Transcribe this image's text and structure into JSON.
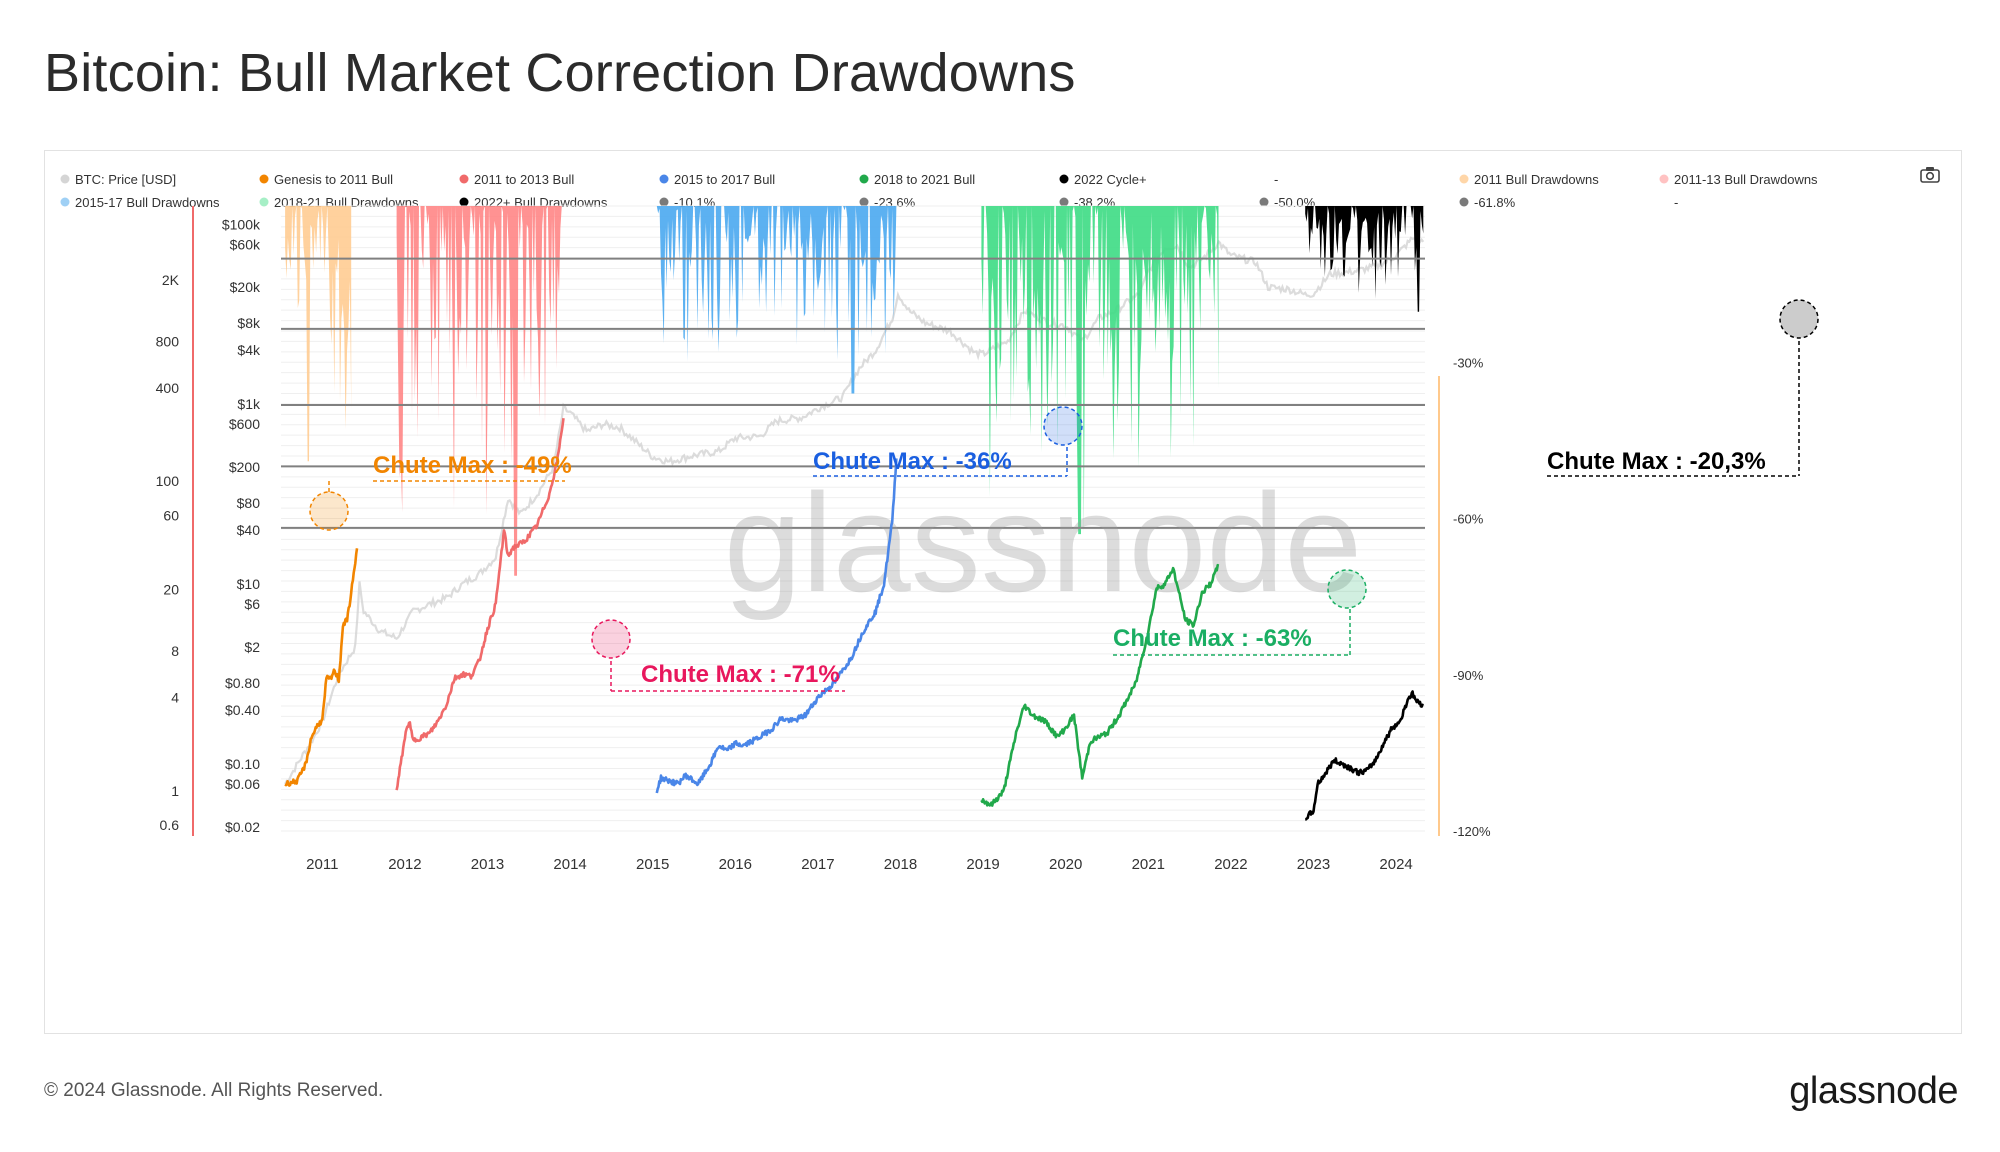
{
  "title": "Bitcoin: Bull Market Correction Drawdowns",
  "footer": {
    "copyright": "© 2024 Glassnode. All Rights Reserved.",
    "logo": "glassnode"
  },
  "watermark": "glassnode",
  "icons": {
    "camera": "camera-icon"
  },
  "colors": {
    "price": "#d0d0d0",
    "genesis": "#f28500",
    "bull_11_13": "#f06a6a",
    "bull_15_17": "#4a86e8",
    "bull_18_21": "#21a94b",
    "cycle_22": "#000000",
    "dd_2011": "#ffc98c",
    "dd_11_13": "#ff7f7f",
    "dd_15_17": "#4aa8f0",
    "dd_18_21": "#3ddc84",
    "dd_2022": "#000000",
    "grid_line": "#808080",
    "left_axis_line": "#f06a6a",
    "right_axis_line": "#ffc98c"
  },
  "chart_data": {
    "type": "line",
    "title": "Bitcoin: Bull Market Correction Drawdowns",
    "legend": [
      {
        "label": "BTC: Price [USD]",
        "color": "#d5d5d5"
      },
      {
        "label": "Genesis to 2011 Bull",
        "color": "#f28500"
      },
      {
        "label": "2011 to 2013 Bull",
        "color": "#f06a6a"
      },
      {
        "label": "2015 to 2017 Bull",
        "color": "#4a86e8"
      },
      {
        "label": "2018 to 2021 Bull",
        "color": "#21a94b"
      },
      {
        "label": "2022 Cycle+",
        "color": "#000000"
      },
      {
        "label": "-",
        "color": null
      },
      {
        "label": "2011 Bull Drawdowns",
        "color": "#ffd6a8"
      },
      {
        "label": "2011-13 Bull Drawdowns",
        "color": "#ffc2c2"
      },
      {
        "label": "2015-17 Bull Drawdowns",
        "color": "#9fd0f5"
      },
      {
        "label": "2018-21 Bull Drawdowns",
        "color": "#a6efc6"
      },
      {
        "label": "2022+ Bull Drawdowns",
        "color": "#000000"
      },
      {
        "label": "-10.1%",
        "color": "#7a7a7a"
      },
      {
        "label": "-23.6%",
        "color": "#7a7a7a"
      },
      {
        "label": "-38.2%",
        "color": "#7a7a7a"
      },
      {
        "label": "-50.0%",
        "color": "#7a7a7a"
      },
      {
        "label": "-61.8%",
        "color": "#7a7a7a"
      },
      {
        "label": "-",
        "color": null
      }
    ],
    "x_ticks": [
      "2011",
      "2012",
      "2013",
      "2014",
      "2015",
      "2016",
      "2017",
      "2018",
      "2019",
      "2020",
      "2021",
      "2022",
      "2023",
      "2024"
    ],
    "x_range": [
      2010.5,
      2024.35
    ],
    "y_left_outer": {
      "scale": "log",
      "ticks": [
        "2K",
        "800",
        "400",
        "100",
        "60",
        "20",
        "8",
        "4",
        "1",
        "0.6"
      ],
      "values": [
        2000,
        800,
        400,
        100,
        60,
        20,
        8,
        4,
        1,
        0.6
      ],
      "range": [
        0.55,
        6000
      ]
    },
    "y_left_price": {
      "scale": "log",
      "ticks": [
        "$100k",
        "$60k",
        "$20k",
        "$8k",
        "$4k",
        "$1k",
        "$600",
        "$200",
        "$80",
        "$40",
        "$10",
        "$6",
        "$2",
        "$0.80",
        "$0.40",
        "$0.10",
        "$0.06",
        "$0.02"
      ],
      "values": [
        100000,
        60000,
        20000,
        8000,
        4000,
        1000,
        600,
        200,
        80,
        40,
        10,
        6,
        2,
        0.8,
        0.4,
        0.1,
        0.06,
        0.02
      ],
      "range": [
        0.018,
        160000
      ]
    },
    "y_right": {
      "ticks": [
        "-30%",
        "-60%",
        "-90%",
        "-120%"
      ],
      "values": [
        -30,
        -60,
        -90,
        -120
      ],
      "range": [
        -120,
        0
      ]
    },
    "reference_levels": [
      -10.1,
      -23.6,
      -38.2,
      -50.0,
      -61.8
    ],
    "drawdown_series": [
      {
        "name": "2011 Bull Drawdowns",
        "start": 2010.55,
        "end": 2011.35,
        "max_drawdown": -49,
        "color": "#ffc98c"
      },
      {
        "name": "2011-13 Bull Drawdowns",
        "start": 2011.9,
        "end": 2013.9,
        "max_drawdown": -71,
        "color": "#ff7f7f"
      },
      {
        "name": "2015-17 Bull Drawdowns",
        "start": 2015.05,
        "end": 2017.95,
        "max_drawdown": -36,
        "color": "#4aa8f0"
      },
      {
        "name": "2018-21 Bull Drawdowns",
        "start": 2018.98,
        "end": 2021.85,
        "max_drawdown": -63,
        "color": "#3ddc84"
      },
      {
        "name": "2022+ Bull Drawdowns",
        "start": 2022.9,
        "end": 2024.33,
        "max_drawdown": -20.3,
        "color": "#000000"
      }
    ],
    "cycle_price_series": [
      {
        "name": "Genesis to 2011 Bull",
        "color": "#f28500",
        "points": [
          [
            2010.55,
            0.06
          ],
          [
            2010.7,
            0.065
          ],
          [
            2010.8,
            0.1
          ],
          [
            2010.87,
            0.2
          ],
          [
            2010.95,
            0.28
          ],
          [
            2011.0,
            0.3
          ],
          [
            2011.05,
            0.9
          ],
          [
            2011.1,
            0.88
          ],
          [
            2011.15,
            1.1
          ],
          [
            2011.2,
            0.85
          ],
          [
            2011.25,
            3.5
          ],
          [
            2011.3,
            4.0
          ],
          [
            2011.35,
            8
          ],
          [
            2011.42,
            25
          ]
        ]
      },
      {
        "name": "2011 to 2013 Bull",
        "color": "#f06a6a",
        "points": [
          [
            2011.9,
            0.05
          ],
          [
            2012.0,
            0.2
          ],
          [
            2012.05,
            0.3
          ],
          [
            2012.1,
            0.18
          ],
          [
            2012.2,
            0.2
          ],
          [
            2012.3,
            0.22
          ],
          [
            2012.4,
            0.3
          ],
          [
            2012.5,
            0.45
          ],
          [
            2012.6,
            0.9
          ],
          [
            2012.7,
            1.0
          ],
          [
            2012.8,
            0.95
          ],
          [
            2012.9,
            1.4
          ],
          [
            2013.0,
            3.2
          ],
          [
            2013.1,
            6
          ],
          [
            2013.2,
            40
          ],
          [
            2013.25,
            20
          ],
          [
            2013.3,
            25
          ],
          [
            2013.45,
            30
          ],
          [
            2013.6,
            45
          ],
          [
            2013.75,
            100
          ],
          [
            2013.85,
            250
          ],
          [
            2013.92,
            700
          ]
        ]
      },
      {
        "name": "2015 to 2017 Bull",
        "color": "#4a86e8",
        "points": [
          [
            2015.05,
            0.05
          ],
          [
            2015.1,
            0.07
          ],
          [
            2015.2,
            0.065
          ],
          [
            2015.3,
            0.06
          ],
          [
            2015.4,
            0.075
          ],
          [
            2015.55,
            0.06
          ],
          [
            2015.7,
            0.1
          ],
          [
            2015.8,
            0.16
          ],
          [
            2015.9,
            0.14
          ],
          [
            2016.0,
            0.17
          ],
          [
            2016.1,
            0.16
          ],
          [
            2016.3,
            0.2
          ],
          [
            2016.45,
            0.25
          ],
          [
            2016.55,
            0.32
          ],
          [
            2016.7,
            0.3
          ],
          [
            2016.85,
            0.35
          ],
          [
            2017.0,
            0.55
          ],
          [
            2017.2,
            0.8
          ],
          [
            2017.4,
            1.5
          ],
          [
            2017.55,
            3.0
          ],
          [
            2017.7,
            5.0
          ],
          [
            2017.8,
            10
          ],
          [
            2017.9,
            50
          ],
          [
            2017.95,
            250
          ]
        ]
      },
      {
        "name": "2018 to 2021 Bull",
        "color": "#21a94b",
        "points": [
          [
            2018.98,
            0.04
          ],
          [
            2019.1,
            0.035
          ],
          [
            2019.25,
            0.05
          ],
          [
            2019.4,
            0.22
          ],
          [
            2019.5,
            0.45
          ],
          [
            2019.6,
            0.35
          ],
          [
            2019.75,
            0.3
          ],
          [
            2019.9,
            0.2
          ],
          [
            2020.0,
            0.25
          ],
          [
            2020.1,
            0.35
          ],
          [
            2020.2,
            0.07
          ],
          [
            2020.3,
            0.18
          ],
          [
            2020.5,
            0.22
          ],
          [
            2020.65,
            0.35
          ],
          [
            2020.85,
            0.8
          ],
          [
            2021.0,
            3
          ],
          [
            2021.1,
            9
          ],
          [
            2021.2,
            10
          ],
          [
            2021.3,
            15
          ],
          [
            2021.45,
            4
          ],
          [
            2021.55,
            3.5
          ],
          [
            2021.65,
            8
          ],
          [
            2021.75,
            10
          ],
          [
            2021.85,
            16
          ]
        ]
      },
      {
        "name": "2022 Cycle+",
        "color": "#000000",
        "points": [
          [
            2022.9,
            0.025
          ],
          [
            2023.0,
            0.03
          ],
          [
            2023.05,
            0.06
          ],
          [
            2023.15,
            0.08
          ],
          [
            2023.25,
            0.11
          ],
          [
            2023.35,
            0.1
          ],
          [
            2023.45,
            0.09
          ],
          [
            2023.55,
            0.08
          ],
          [
            2023.65,
            0.085
          ],
          [
            2023.75,
            0.11
          ],
          [
            2023.85,
            0.17
          ],
          [
            2023.95,
            0.25
          ],
          [
            2024.05,
            0.3
          ],
          [
            2024.15,
            0.55
          ],
          [
            2024.2,
            0.6
          ],
          [
            2024.25,
            0.5
          ],
          [
            2024.33,
            0.45
          ]
        ]
      }
    ],
    "btc_price_series": [
      [
        2010.55,
        0.06
      ],
      [
        2010.9,
        0.2
      ],
      [
        2011.0,
        0.3
      ],
      [
        2011.2,
        1
      ],
      [
        2011.4,
        2
      ],
      [
        2011.45,
        10
      ],
      [
        2011.5,
        5
      ],
      [
        2011.7,
        3
      ],
      [
        2011.9,
        2.5
      ],
      [
        2012.1,
        5
      ],
      [
        2012.3,
        6
      ],
      [
        2012.5,
        7
      ],
      [
        2012.7,
        10
      ],
      [
        2012.9,
        13
      ],
      [
        2013.1,
        20
      ],
      [
        2013.25,
        90
      ],
      [
        2013.4,
        60
      ],
      [
        2013.6,
        100
      ],
      [
        2013.8,
        200
      ],
      [
        2013.92,
        900
      ],
      [
        2014.0,
        800
      ],
      [
        2014.2,
        500
      ],
      [
        2014.4,
        600
      ],
      [
        2014.6,
        550
      ],
      [
        2014.8,
        380
      ],
      [
        2015.0,
        260
      ],
      [
        2015.2,
        230
      ],
      [
        2015.5,
        270
      ],
      [
        2015.8,
        300
      ],
      [
        2016.0,
        420
      ],
      [
        2016.3,
        440
      ],
      [
        2016.5,
        650
      ],
      [
        2016.8,
        710
      ],
      [
        2017.0,
        900
      ],
      [
        2017.3,
        1200
      ],
      [
        2017.5,
        2500
      ],
      [
        2017.7,
        4000
      ],
      [
        2017.9,
        9000
      ],
      [
        2017.97,
        17000
      ],
      [
        2018.1,
        11000
      ],
      [
        2018.3,
        8000
      ],
      [
        2018.6,
        6500
      ],
      [
        2018.9,
        3700
      ],
      [
        2019.0,
        3600
      ],
      [
        2019.3,
        5000
      ],
      [
        2019.5,
        11000
      ],
      [
        2019.8,
        8000
      ],
      [
        2020.0,
        7500
      ],
      [
        2020.2,
        5000
      ],
      [
        2020.4,
        9000
      ],
      [
        2020.6,
        11000
      ],
      [
        2020.9,
        17000
      ],
      [
        2021.0,
        30000
      ],
      [
        2021.2,
        55000
      ],
      [
        2021.35,
        58000
      ],
      [
        2021.5,
        33000
      ],
      [
        2021.7,
        45000
      ],
      [
        2021.85,
        63000
      ],
      [
        2022.0,
        45000
      ],
      [
        2022.3,
        38000
      ],
      [
        2022.45,
        20000
      ],
      [
        2022.7,
        19000
      ],
      [
        2022.9,
        16500
      ],
      [
        2023.0,
        17000
      ],
      [
        2023.2,
        28000
      ],
      [
        2023.5,
        30000
      ],
      [
        2023.8,
        35000
      ],
      [
        2024.0,
        45000
      ],
      [
        2024.2,
        70000
      ],
      [
        2024.33,
        64000
      ]
    ],
    "annotations": [
      {
        "label": "Chute Max : -49%",
        "color": "#f28500",
        "at_year": 2010.97,
        "drawdown": -49
      },
      {
        "label": "Chute Max : -71%",
        "color": "#e8175d",
        "at_year": 2013.55,
        "drawdown": -71
      },
      {
        "label": "Chute Max : -36%",
        "color": "#1a5fe0",
        "at_year": 2017.58,
        "drawdown": -36
      },
      {
        "label": "Chute Max : -63%",
        "color": "#1aae63",
        "at_year": 2020.22,
        "drawdown": -63
      },
      {
        "label": "Chute Max : -20,3%",
        "color": "#000000",
        "at_year": 2024.32,
        "drawdown": -20.3
      }
    ]
  }
}
